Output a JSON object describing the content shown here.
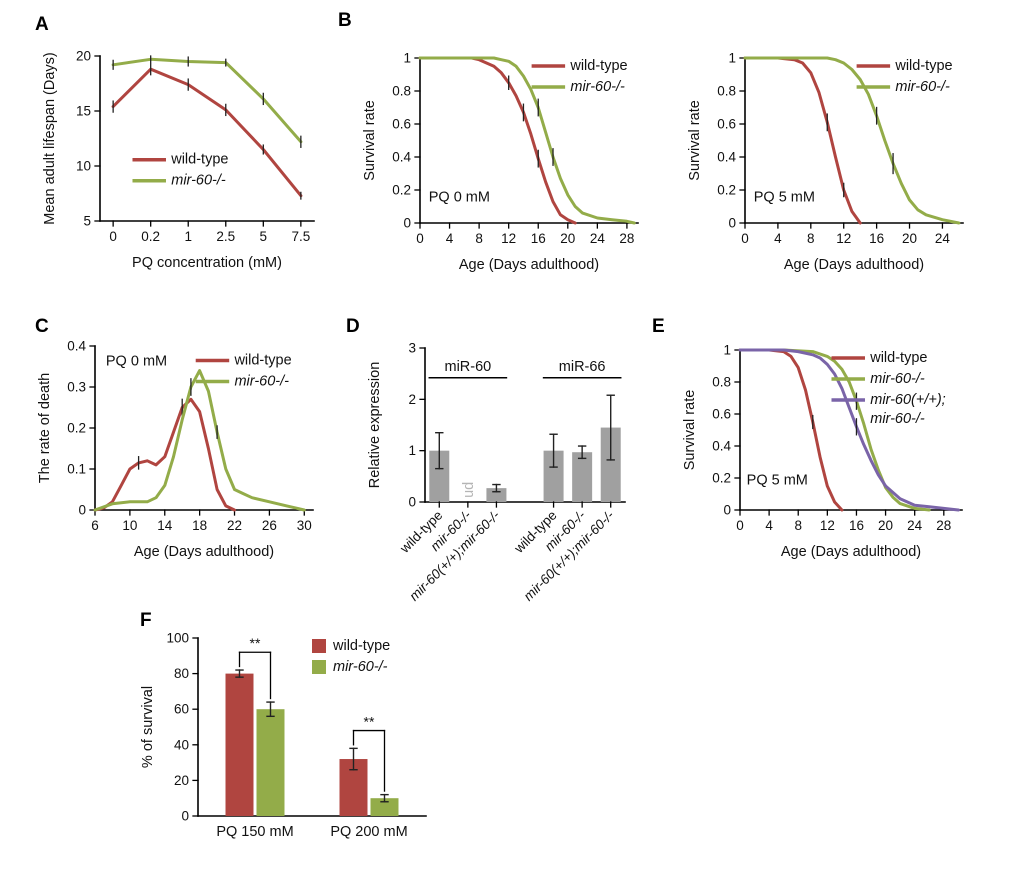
{
  "figure": {
    "panel_labels": [
      "A",
      "B",
      "C",
      "D",
      "E",
      "F"
    ],
    "background": "#ffffff"
  },
  "colors": {
    "wild_type": "#b04540",
    "mir60": "#93ac49",
    "double": "#7a64a8",
    "bar": "#a0a0a0",
    "ud": "#b5b5b5",
    "axis": "#000000"
  },
  "chart_data": [
    {
      "panel": "A",
      "type": "line",
      "xlabel": "PQ concentration (mM)",
      "ylabel": "Mean adult lifespan (Days)",
      "xlim": [
        -0.35,
        5.35
      ],
      "ylim": [
        5,
        20
      ],
      "xticks": [
        0,
        1,
        2,
        3,
        4,
        5
      ],
      "xtick_labels": [
        "0",
        "0.2",
        "1",
        "2.5",
        "5",
        "7.5"
      ],
      "yticks": [
        5,
        10,
        15,
        20
      ],
      "margins": {
        "l": 62,
        "r": 14,
        "t": 18,
        "b": 62
      },
      "legend": {
        "x": 0.16,
        "y": 0.58
      },
      "series": [
        {
          "name": "wild-type",
          "italic": false,
          "color": "wild_type",
          "x": [
            0,
            1,
            2,
            3,
            4,
            5
          ],
          "y": [
            15.4,
            18.8,
            17.4,
            15.1,
            11.5,
            7.3
          ],
          "err": [
            0.5,
            0.5,
            0.5,
            0.5,
            0.4,
            0.3
          ]
        },
        {
          "name": "mir-60-/-",
          "italic": true,
          "color": "mir60",
          "x": [
            0,
            1,
            2,
            3,
            4,
            5
          ],
          "y": [
            19.2,
            19.7,
            19.5,
            19.4,
            16.1,
            12.2
          ],
          "err": [
            0.4,
            0.3,
            0.4,
            0.3,
            0.5,
            0.5
          ]
        }
      ]
    },
    {
      "panel": "B-left",
      "type": "line",
      "xlabel": "Age (Days adulthood)",
      "ylabel": "Survival rate",
      "note": {
        "text": "PQ 0 mM",
        "x": 0.04,
        "y": 0.87
      },
      "xlim": [
        0,
        29.5
      ],
      "ylim": [
        0,
        1
      ],
      "xticks": [
        0,
        4,
        8,
        12,
        16,
        20,
        24,
        28
      ],
      "yticks": [
        0,
        0.2,
        0.4,
        0.6,
        0.8,
        1
      ],
      "margins": {
        "l": 68,
        "r": 14,
        "t": 18,
        "b": 62
      },
      "legend": {
        "x": 0.52,
        "y": 0.0
      },
      "series": [
        {
          "name": "wild-type",
          "italic": false,
          "color": "wild_type",
          "x": [
            0,
            5,
            7,
            8,
            9,
            10,
            11,
            12,
            13,
            14,
            15,
            16,
            17,
            18,
            19,
            20,
            21
          ],
          "y": [
            1,
            1,
            1,
            0.99,
            0.97,
            0.95,
            0.91,
            0.85,
            0.77,
            0.67,
            0.54,
            0.39,
            0.25,
            0.13,
            0.05,
            0.02,
            0
          ],
          "err": [
            0,
            0,
            0,
            0,
            0,
            0,
            0,
            0.04,
            0,
            0.05,
            0,
            0.05,
            0,
            0,
            0,
            0,
            0
          ]
        },
        {
          "name": "mir-60-/-",
          "italic": true,
          "color": "mir60",
          "x": [
            0,
            6,
            10,
            11,
            12,
            13,
            14,
            15,
            16,
            17,
            18,
            19,
            20,
            21,
            22,
            24,
            26,
            28,
            29
          ],
          "y": [
            1,
            1,
            1,
            0.99,
            0.98,
            0.95,
            0.89,
            0.81,
            0.7,
            0.55,
            0.4,
            0.27,
            0.17,
            0.1,
            0.06,
            0.03,
            0.02,
            0.01,
            0
          ],
          "err": [
            0,
            0,
            0,
            0,
            0,
            0,
            0,
            0,
            0.05,
            0,
            0.05,
            0,
            0,
            0,
            0,
            0,
            0,
            0,
            0
          ]
        }
      ]
    },
    {
      "panel": "B-right",
      "type": "line",
      "xlabel": "Age (Days adulthood)",
      "ylabel": "Survival rate",
      "note": {
        "text": "PQ 5 mM",
        "x": 0.04,
        "y": 0.87
      },
      "xlim": [
        0,
        26.5
      ],
      "ylim": [
        0,
        1
      ],
      "xticks": [
        0,
        4,
        8,
        12,
        16,
        20,
        24
      ],
      "yticks": [
        0,
        0.2,
        0.4,
        0.6,
        0.8,
        1
      ],
      "margins": {
        "l": 68,
        "r": 14,
        "t": 18,
        "b": 62
      },
      "legend": {
        "x": 0.52,
        "y": 0.0
      },
      "series": [
        {
          "name": "wild-type",
          "italic": false,
          "color": "wild_type",
          "x": [
            0,
            4,
            6,
            7,
            8,
            9,
            10,
            11,
            12,
            13,
            14
          ],
          "y": [
            1,
            1,
            0.99,
            0.97,
            0.91,
            0.79,
            0.61,
            0.4,
            0.2,
            0.07,
            0
          ],
          "err": [
            0,
            0,
            0,
            0,
            0,
            0,
            0.05,
            0,
            0.04,
            0,
            0
          ]
        },
        {
          "name": "mir-60-/-",
          "italic": true,
          "color": "mir60",
          "x": [
            0,
            6,
            10,
            11,
            12,
            13,
            14,
            15,
            16,
            17,
            18,
            19,
            20,
            21,
            22,
            24,
            26
          ],
          "y": [
            1,
            1,
            1,
            0.99,
            0.97,
            0.93,
            0.87,
            0.78,
            0.65,
            0.5,
            0.36,
            0.24,
            0.14,
            0.08,
            0.05,
            0.02,
            0
          ],
          "err": [
            0,
            0,
            0,
            0,
            0,
            0,
            0,
            0,
            0.05,
            0,
            0.06,
            0,
            0,
            0,
            0,
            0,
            0
          ]
        }
      ]
    },
    {
      "panel": "C",
      "type": "line",
      "xlabel": "Age (Days adulthood)",
      "ylabel": "The rate of death",
      "note": {
        "text": "PQ 0 mM",
        "x": 0.05,
        "y": 0.12
      },
      "xlim": [
        6,
        31
      ],
      "ylim": [
        0,
        0.4
      ],
      "xticks": [
        6,
        10,
        14,
        18,
        22,
        26,
        30
      ],
      "yticks": [
        0,
        0.1,
        0.2,
        0.3,
        0.4
      ],
      "margins": {
        "l": 65,
        "r": 12,
        "t": 14,
        "b": 62
      },
      "legend": {
        "x": 0.47,
        "y": 0.04
      },
      "series": [
        {
          "name": "wild-type",
          "italic": false,
          "color": "wild_type",
          "x": [
            6,
            7,
            8,
            9,
            10,
            11,
            12,
            13,
            14,
            15,
            16,
            17,
            18,
            19,
            20,
            21,
            22
          ],
          "y": [
            0,
            0.005,
            0.02,
            0.06,
            0.1,
            0.115,
            0.12,
            0.11,
            0.13,
            0.19,
            0.25,
            0.27,
            0.24,
            0.15,
            0.05,
            0.01,
            0
          ],
          "err": [
            0,
            0,
            0,
            0,
            0,
            0.015,
            0,
            0,
            0,
            0,
            0.02,
            0,
            0,
            0,
            0,
            0,
            0
          ]
        },
        {
          "name": "mir-60-/-",
          "italic": true,
          "color": "mir60",
          "x": [
            6,
            8,
            10,
            12,
            13,
            14,
            15,
            16,
            17,
            18,
            19,
            20,
            21,
            22,
            23,
            24,
            26,
            28,
            30
          ],
          "y": [
            0,
            0.015,
            0.02,
            0.02,
            0.03,
            0.06,
            0.13,
            0.22,
            0.3,
            0.34,
            0.29,
            0.19,
            0.1,
            0.05,
            0.04,
            0.03,
            0.02,
            0.01,
            0
          ],
          "err": [
            0,
            0,
            0,
            0,
            0,
            0,
            0,
            0,
            0.02,
            0,
            0,
            0.015,
            0,
            0,
            0,
            0,
            0,
            0,
            0
          ]
        }
      ]
    },
    {
      "panel": "D",
      "type": "bar",
      "ylabel": "Relative expression",
      "ylim": [
        0,
        3
      ],
      "yticks": [
        0,
        1,
        2,
        3
      ],
      "margins": {
        "l": 70,
        "r": 15,
        "t": 16,
        "b": 132
      },
      "bar_color": "bar",
      "categories": [
        {
          "label": "wild-type",
          "italic": false
        },
        {
          "label": "mir-60-/-",
          "italic": true
        },
        {
          "label": "mir-60(+/+);mir-60-/-",
          "italic": true
        },
        {
          "label": "wild-type",
          "italic": false
        },
        {
          "label": "mir-60-/-",
          "italic": true
        },
        {
          "label": "mir-60(+/+);mir-60-/-",
          "italic": true
        }
      ],
      "values": [
        1.0,
        0,
        0.27,
        1.0,
        0.97,
        1.45
      ],
      "errors": [
        0.35,
        0,
        0.07,
        0.32,
        0.12,
        0.63
      ],
      "group_gap_after": [
        2
      ],
      "group_labels": [
        {
          "text": "miR-60",
          "from": 0,
          "to": 2,
          "y": 2.42
        },
        {
          "text": "miR-66",
          "from": 3,
          "to": 5,
          "y": 2.42
        }
      ],
      "annotations": [
        {
          "text": "ud",
          "bar": 1,
          "y": 0.08,
          "color_key": "ud"
        }
      ]
    },
    {
      "panel": "E",
      "type": "line",
      "xlabel": "Age (Days adulthood)",
      "ylabel": "Survival rate",
      "note": {
        "text": "PQ 5 mM",
        "x": 0.03,
        "y": 0.84
      },
      "xlim": [
        0,
        30.5
      ],
      "ylim": [
        0,
        1
      ],
      "xticks": [
        0,
        4,
        8,
        12,
        16,
        20,
        24,
        28
      ],
      "yticks": [
        0,
        0.2,
        0.4,
        0.6,
        0.8,
        1
      ],
      "margins": {
        "l": 68,
        "r": 40,
        "t": 18,
        "b": 62
      },
      "legend": {
        "x": 0.42,
        "y": 0.0
      },
      "series": [
        {
          "name": "wild-type",
          "italic": false,
          "color": "wild_type",
          "x": [
            0,
            4,
            6,
            7,
            8,
            9,
            10,
            11,
            12,
            13,
            14
          ],
          "y": [
            1,
            1,
            0.99,
            0.96,
            0.89,
            0.75,
            0.55,
            0.33,
            0.15,
            0.05,
            0
          ],
          "err": [
            0,
            0,
            0,
            0,
            0,
            0,
            0.04,
            0,
            0,
            0,
            0
          ]
        },
        {
          "name": "mir-60-/-",
          "italic": true,
          "color": "mir60",
          "x": [
            0,
            6,
            10,
            12,
            13,
            14,
            15,
            16,
            17,
            18,
            19,
            20,
            21,
            22,
            24,
            26
          ],
          "y": [
            1,
            1,
            0.99,
            0.96,
            0.93,
            0.88,
            0.8,
            0.68,
            0.54,
            0.38,
            0.25,
            0.14,
            0.08,
            0.04,
            0.01,
            0
          ],
          "err": [
            0,
            0,
            0,
            0,
            0,
            0,
            0,
            0.05,
            0,
            0,
            0,
            0,
            0,
            0,
            0,
            0
          ]
        },
        {
          "name": "mir-60(+/+);",
          "name2": "mir-60-/-",
          "italic": true,
          "color": "double",
          "x": [
            0,
            6,
            8,
            10,
            11,
            12,
            13,
            14,
            15,
            16,
            17,
            18,
            19,
            20,
            22,
            24,
            26,
            28,
            30
          ],
          "y": [
            1,
            1,
            0.99,
            0.97,
            0.95,
            0.91,
            0.85,
            0.76,
            0.64,
            0.52,
            0.41,
            0.31,
            0.22,
            0.15,
            0.07,
            0.03,
            0.02,
            0.01,
            0
          ],
          "err": [
            0,
            0,
            0,
            0,
            0,
            0,
            0,
            0,
            0,
            0.05,
            0,
            0,
            0,
            0,
            0,
            0,
            0,
            0,
            0
          ]
        }
      ]
    },
    {
      "panel": "F",
      "type": "grouped_bar",
      "ylabel": "% of survival",
      "ylim": [
        0,
        100
      ],
      "yticks": [
        0,
        20,
        40,
        60,
        80,
        100
      ],
      "margins": {
        "l": 58,
        "r": 14,
        "t": 16,
        "b": 44
      },
      "categories": [
        "PQ 150 mM",
        "PQ 200 mM"
      ],
      "legend": {
        "x": 0.5,
        "y": 0.0,
        "swatch": true
      },
      "series": [
        {
          "name": "wild-type",
          "italic": false,
          "color": "wild_type",
          "values": [
            80,
            32
          ],
          "errors": [
            2,
            6
          ]
        },
        {
          "name": "mir-60-/-",
          "italic": true,
          "color": "mir60",
          "values": [
            60,
            10
          ],
          "errors": [
            4,
            2
          ]
        }
      ],
      "sig": [
        {
          "group": 0,
          "label": "**",
          "y": 92,
          "left_to": 84,
          "right_to": 66
        },
        {
          "group": 1,
          "label": "**",
          "y": 48,
          "left_to": 40,
          "right_to": 14
        }
      ]
    }
  ]
}
